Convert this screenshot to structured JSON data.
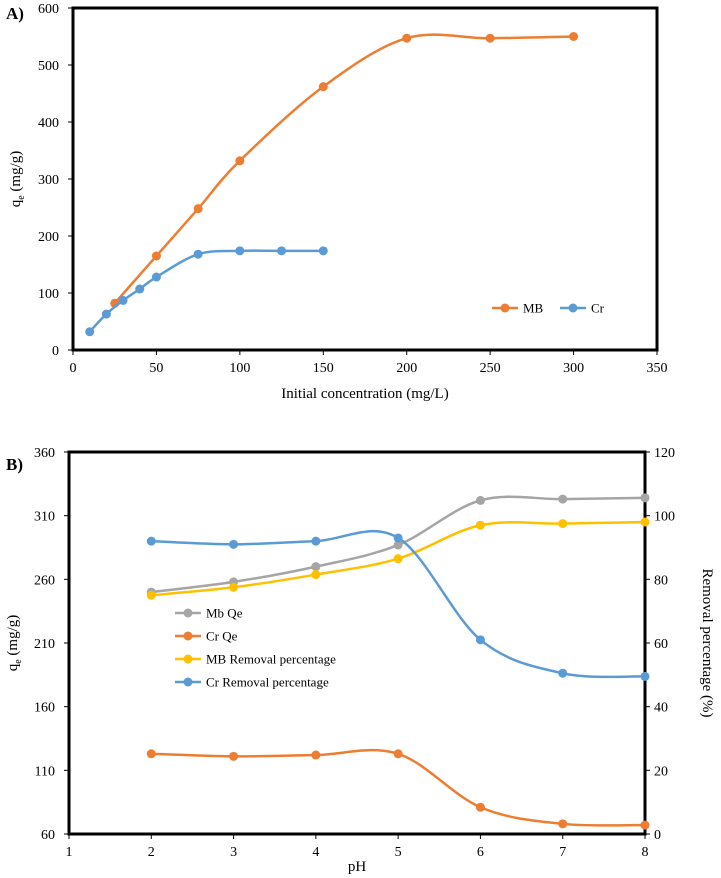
{
  "chart_data": [
    {
      "type": "line",
      "panel_label": "A)",
      "xlabel": "Initial concentration (mg/L)",
      "ylabel_main": "q",
      "ylabel_sub": "e",
      "ylabel_unit": " (mg/g)",
      "xlim": [
        0,
        350
      ],
      "ylim": [
        0,
        600
      ],
      "xticks": [
        "0",
        "50",
        "100",
        "150",
        "200",
        "250",
        "300",
        "350"
      ],
      "yticks": [
        "0",
        "100",
        "200",
        "300",
        "400",
        "500",
        "600"
      ],
      "legend_position": "bottom-right",
      "series": [
        {
          "name": "MB",
          "color": "#ED7D31",
          "x": [
            25,
            50,
            75,
            100,
            150,
            200,
            250,
            300
          ],
          "y": [
            82,
            165,
            248,
            332,
            462,
            547,
            547,
            550
          ]
        },
        {
          "name": "Cr",
          "color": "#5B9BD5",
          "x": [
            10,
            20,
            30,
            40,
            50,
            75,
            100,
            125,
            150
          ],
          "y": [
            32,
            63,
            87,
            107,
            128,
            168,
            174,
            174,
            174
          ]
        }
      ]
    },
    {
      "type": "line",
      "panel_label": "B)",
      "xlabel": "pH",
      "ylabel_main": "q",
      "ylabel_sub": "e",
      "ylabel_unit": " (mg/g)",
      "y2label": "Removal percentage (%)",
      "xlim": [
        1,
        8
      ],
      "ylim": [
        60,
        360
      ],
      "y2lim": [
        0,
        120
      ],
      "xticks": [
        "1",
        "2",
        "3",
        "4",
        "5",
        "6",
        "7",
        "8"
      ],
      "yticks": [
        "60",
        "110",
        "160",
        "210",
        "260",
        "310",
        "360"
      ],
      "y2ticks": [
        "0",
        "20",
        "40",
        "60",
        "80",
        "100",
        "120"
      ],
      "legend_position": "left-middle",
      "series": [
        {
          "name": "Mb Qe",
          "color": "#A5A5A5",
          "axis": "left",
          "x": [
            2,
            3,
            4,
            5,
            6,
            7,
            8
          ],
          "y": [
            250,
            258,
            270,
            287,
            322,
            323,
            324
          ]
        },
        {
          "name": "Cr Qe",
          "color": "#ED7D31",
          "axis": "left",
          "x": [
            2,
            3,
            4,
            5,
            6,
            7,
            8
          ],
          "y": [
            123,
            121,
            122,
            123,
            81,
            68,
            67
          ]
        },
        {
          "name": "MB Removal percentage",
          "color": "#FFC000",
          "axis": "right",
          "x": [
            2,
            3,
            4,
            5,
            6,
            7,
            8
          ],
          "y": [
            75,
            77.5,
            81.5,
            86.5,
            97,
            97.5,
            98
          ]
        },
        {
          "name": "Cr Removal percentage",
          "color": "#5B9BD5",
          "axis": "right",
          "x": [
            2,
            3,
            4,
            5,
            6,
            7,
            8
          ],
          "y": [
            92,
            91,
            92,
            93,
            61,
            50.5,
            49.5
          ]
        }
      ]
    }
  ]
}
